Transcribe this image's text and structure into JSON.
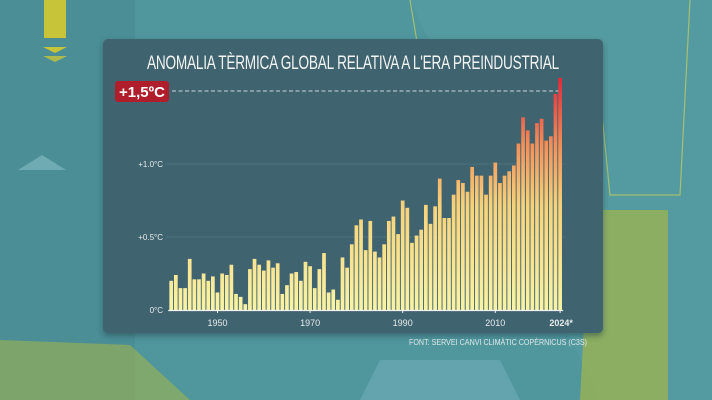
{
  "chart_data": {
    "type": "bar",
    "title": "ANOMALIA TÈRMICA GLOBAL RELATIVA A L'ERA PREINDUSTRIAL",
    "source": "FONT: SERVEI CANVI CLIMÀTIC COPÈRNICUS (C3S)",
    "xlabel": "",
    "ylabel": "",
    "ylim": [
      0,
      1.6
    ],
    "xlim": [
      1940,
      2024
    ],
    "y_ticks": [
      {
        "value": 0,
        "label": "0°C"
      },
      {
        "value": 0.5,
        "label": "+0.5°C"
      },
      {
        "value": 1.0,
        "label": "+1.0°C"
      }
    ],
    "x_ticks": [
      {
        "value": 1950,
        "label": "1950"
      },
      {
        "value": 1970,
        "label": "1970"
      },
      {
        "value": 1990,
        "label": "1990"
      },
      {
        "value": 2010,
        "label": "2010"
      },
      {
        "value": 2024,
        "label": "2024*"
      }
    ],
    "threshold": {
      "value": 1.5,
      "label": "+1,5ºC",
      "style": "dashed",
      "color": "#b01e2c"
    },
    "grid": true,
    "colors": {
      "low": "#f7f0a0",
      "mid": "#f4b060",
      "high": "#e2303c",
      "panel": "#41636f"
    },
    "years": [
      1940,
      1941,
      1942,
      1943,
      1944,
      1945,
      1946,
      1947,
      1948,
      1949,
      1950,
      1951,
      1952,
      1953,
      1954,
      1955,
      1956,
      1957,
      1958,
      1959,
      1960,
      1961,
      1962,
      1963,
      1964,
      1965,
      1966,
      1967,
      1968,
      1969,
      1970,
      1971,
      1972,
      1973,
      1974,
      1975,
      1976,
      1977,
      1978,
      1979,
      1980,
      1981,
      1982,
      1983,
      1984,
      1985,
      1986,
      1987,
      1988,
      1989,
      1990,
      1991,
      1992,
      1993,
      1994,
      1995,
      1996,
      1997,
      1998,
      1999,
      2000,
      2001,
      2002,
      2003,
      2004,
      2005,
      2006,
      2007,
      2008,
      2009,
      2010,
      2011,
      2012,
      2013,
      2014,
      2015,
      2016,
      2017,
      2018,
      2019,
      2020,
      2021,
      2022,
      2023,
      2024
    ],
    "values": [
      0.2,
      0.24,
      0.15,
      0.15,
      0.35,
      0.21,
      0.21,
      0.25,
      0.2,
      0.23,
      0.12,
      0.25,
      0.24,
      0.31,
      0.11,
      0.09,
      0.04,
      0.28,
      0.35,
      0.31,
      0.27,
      0.34,
      0.29,
      0.32,
      0.11,
      0.17,
      0.25,
      0.26,
      0.2,
      0.33,
      0.3,
      0.15,
      0.28,
      0.39,
      0.12,
      0.14,
      0.07,
      0.36,
      0.29,
      0.45,
      0.58,
      0.62,
      0.41,
      0.61,
      0.4,
      0.36,
      0.45,
      0.61,
      0.64,
      0.52,
      0.75,
      0.7,
      0.46,
      0.51,
      0.55,
      0.72,
      0.59,
      0.71,
      0.9,
      0.63,
      0.63,
      0.79,
      0.89,
      0.87,
      0.81,
      0.98,
      0.92,
      0.92,
      0.79,
      0.92,
      1.01,
      0.87,
      0.92,
      0.95,
      0.99,
      1.14,
      1.32,
      1.23,
      1.14,
      1.28,
      1.31,
      1.16,
      1.19,
      1.48,
      1.59
    ]
  }
}
